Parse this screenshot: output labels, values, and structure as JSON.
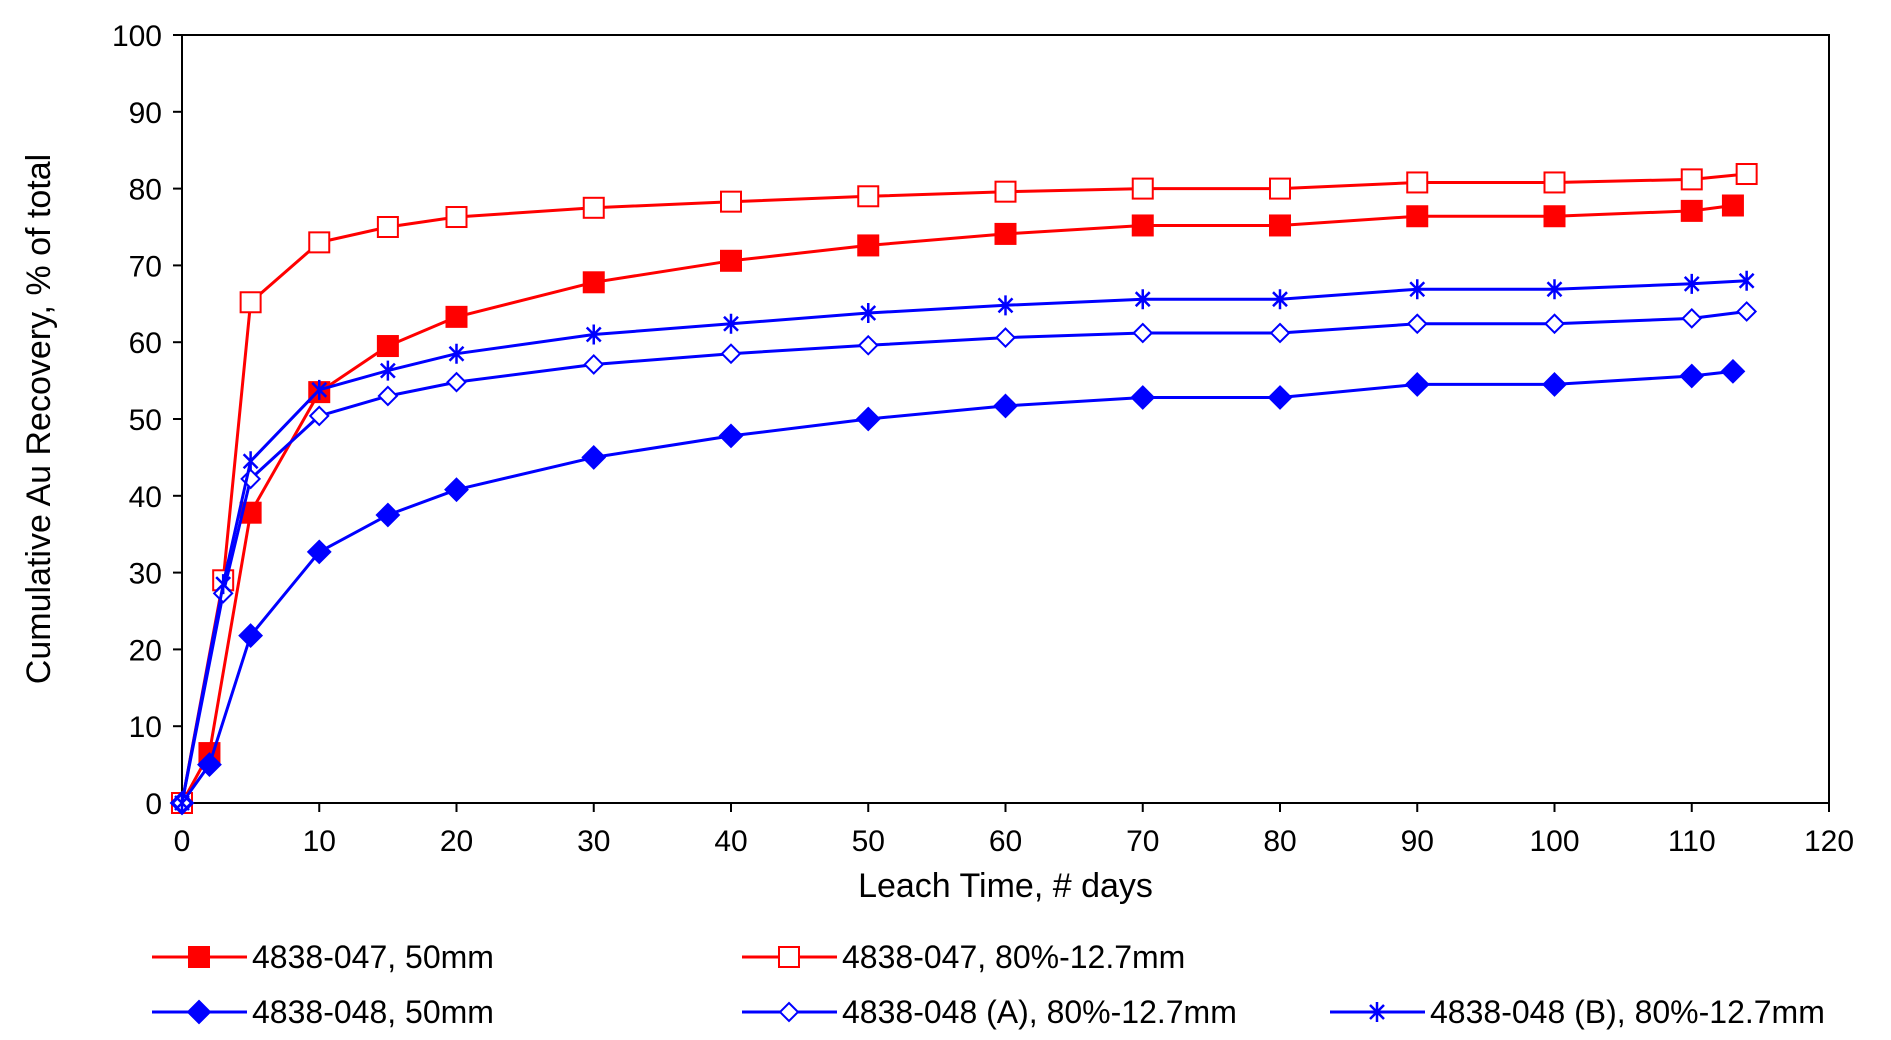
{
  "chart_data": {
    "type": "line",
    "title": "",
    "xlabel": "Leach Time, # days",
    "ylabel": "Cumulative Au Recovery, % of total",
    "xlim": [
      0,
      120
    ],
    "ylim": [
      0,
      100
    ],
    "xticks": [
      0,
      10,
      20,
      30,
      40,
      50,
      60,
      70,
      80,
      90,
      100,
      110,
      120
    ],
    "yticks": [
      0,
      10,
      20,
      30,
      40,
      50,
      60,
      70,
      80,
      90,
      100
    ],
    "grid": false,
    "legend_position": "bottom",
    "series": [
      {
        "name": "4838-047, 50mm",
        "color": "#ff0000",
        "marker": "square-filled",
        "x": [
          0,
          2,
          5,
          10,
          15,
          20,
          30,
          40,
          50,
          60,
          70,
          80,
          90,
          100,
          110,
          113
        ],
        "y": [
          0,
          6.5,
          37.8,
          53.5,
          59.5,
          63.3,
          67.8,
          70.6,
          72.6,
          74.1,
          75.2,
          75.2,
          76.4,
          76.4,
          77.1,
          77.8
        ]
      },
      {
        "name": "4838-047, 80%-12.7mm",
        "color": "#ff0000",
        "marker": "square-open",
        "x": [
          0,
          3,
          5,
          10,
          15,
          20,
          30,
          40,
          50,
          60,
          70,
          80,
          90,
          100,
          110,
          114
        ],
        "y": [
          0,
          29.0,
          65.2,
          73.0,
          75.0,
          76.3,
          77.5,
          78.3,
          79.0,
          79.6,
          80.0,
          80.0,
          80.8,
          80.8,
          81.2,
          81.9
        ]
      },
      {
        "name": "4838-048, 50mm",
        "color": "#0000ff",
        "marker": "diamond-filled",
        "x": [
          0,
          2,
          5,
          10,
          15,
          20,
          30,
          40,
          50,
          60,
          70,
          80,
          90,
          100,
          110,
          113
        ],
        "y": [
          0,
          5.0,
          21.8,
          32.7,
          37.5,
          40.8,
          45.0,
          47.8,
          50.0,
          51.7,
          52.8,
          52.8,
          54.5,
          54.5,
          55.6,
          56.2
        ]
      },
      {
        "name": "4838-048 (A), 80%-12.7mm",
        "color": "#0000ff",
        "marker": "diamond-open",
        "x": [
          0,
          3,
          5,
          10,
          15,
          20,
          30,
          40,
          50,
          60,
          70,
          80,
          90,
          100,
          110,
          114
        ],
        "y": [
          0,
          27.3,
          42.2,
          50.4,
          53.0,
          54.8,
          57.1,
          58.5,
          59.6,
          60.6,
          61.2,
          61.2,
          62.4,
          62.4,
          63.1,
          64.0
        ]
      },
      {
        "name": "4838-048 (B), 80%-12.7mm",
        "color": "#0000ff",
        "marker": "asterisk",
        "x": [
          0,
          3,
          5,
          10,
          15,
          20,
          30,
          40,
          50,
          60,
          70,
          80,
          90,
          100,
          110,
          114
        ],
        "y": [
          0,
          28.5,
          44.5,
          53.8,
          56.3,
          58.5,
          61.0,
          62.4,
          63.8,
          64.8,
          65.6,
          65.6,
          66.9,
          66.9,
          67.6,
          68.0
        ]
      }
    ]
  }
}
